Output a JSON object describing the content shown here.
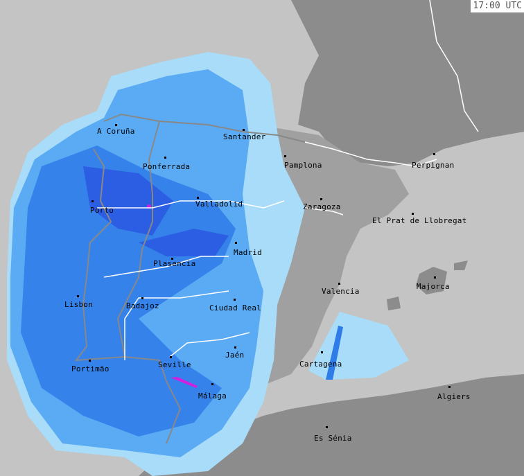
{
  "timestamp": "17:00 UTC",
  "colors": {
    "sea": "#c4c4c4",
    "land": "#8c8c8c",
    "radar_light": "#a8dcf8",
    "radar_mid": "#5aaaf4",
    "radar_strong": "#2f7ce8",
    "radar_heavy": "#2a4ee0",
    "radar_extreme": "#d020e0",
    "border_country": "#888888",
    "border_region": "#ffffff"
  },
  "cities": [
    {
      "name": "A Coruña"
    },
    {
      "name": "Santander"
    },
    {
      "name": "Ponferrada"
    },
    {
      "name": "Pamplona"
    },
    {
      "name": "Perpignan"
    },
    {
      "name": "Valladolid"
    },
    {
      "name": "Zaragoza"
    },
    {
      "name": "Porto"
    },
    {
      "name": "El Prat de Llobregat"
    },
    {
      "name": "Madrid"
    },
    {
      "name": "Plasencia"
    },
    {
      "name": "Majorca"
    },
    {
      "name": "Valencia"
    },
    {
      "name": "Lisbon"
    },
    {
      "name": "Badajoz"
    },
    {
      "name": "Ciudad Real"
    },
    {
      "name": "Jaén"
    },
    {
      "name": "Cartagena"
    },
    {
      "name": "Portimão"
    },
    {
      "name": "Seville"
    },
    {
      "name": "Málaga"
    },
    {
      "name": "Algiers"
    },
    {
      "name": "Es Sénia"
    }
  ]
}
